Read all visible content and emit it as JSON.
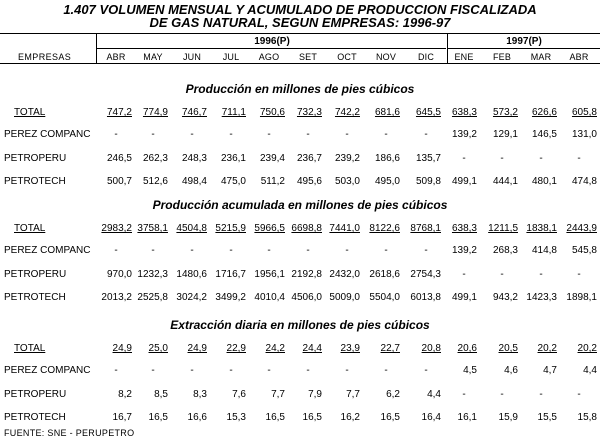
{
  "title_line1": "1.407  VOLUMEN MENSUAL Y ACUMULADO DE PRODUCCION FISCALIZADA",
  "title_line2": "DE GAS NATURAL, SEGUN EMPRESAS: 1996-97",
  "header": {
    "empresas": "EMPRESAS",
    "year_1996": "1996(P)",
    "year_1997": "1997(P)",
    "months": [
      "ABR",
      "MAY",
      "JUN",
      "JUL",
      "AGO",
      "SET",
      "OCT",
      "NOV",
      "DIC",
      "ENE",
      "FEB",
      "MAR",
      "ABR"
    ]
  },
  "sections": [
    {
      "title": "Producción en millones de pies cúbicos",
      "rows": [
        {
          "label": "TOTAL",
          "values": [
            "747,2",
            "774,9",
            "746,7",
            "711,1",
            "750,6",
            "732,3",
            "742,2",
            "681,6",
            "645,5",
            "638,3",
            "573,2",
            "626,6",
            "605,8"
          ]
        },
        {
          "label": "PEREZ COMPANC",
          "values": [
            "-",
            "-",
            "-",
            "-",
            "-",
            "-",
            "-",
            "-",
            "-",
            "139,2",
            "129,1",
            "146,5",
            "131,0"
          ]
        },
        {
          "label": "PETROPERU",
          "values": [
            "246,5",
            "262,3",
            "248,3",
            "236,1",
            "239,4",
            "236,7",
            "239,2",
            "186,6",
            "135,7",
            "-",
            "-",
            "-",
            "-"
          ]
        },
        {
          "label": "PETROTECH",
          "values": [
            "500,7",
            "512,6",
            "498,4",
            "475,0",
            "511,2",
            "495,6",
            "503,0",
            "495,0",
            "509,8",
            "499,1",
            "444,1",
            "480,1",
            "474,8"
          ]
        }
      ]
    },
    {
      "title": "Producción acumulada en millones de pies cúbicos",
      "rows": [
        {
          "label": "TOTAL",
          "values": [
            "2983,2",
            "3758,1",
            "4504,8",
            "5215,9",
            "5966,5",
            "6698,8",
            "7441,0",
            "8122,6",
            "8768,1",
            "638,3",
            "1211,5",
            "1838,1",
            "2443,9"
          ]
        },
        {
          "label": "PEREZ COMPANC",
          "values": [
            "-",
            "-",
            "-",
            "-",
            "-",
            "-",
            "-",
            "-",
            "-",
            "139,2",
            "268,3",
            "414,8",
            "545,8"
          ]
        },
        {
          "label": "PETROPERU",
          "values": [
            "970,0",
            "1232,3",
            "1480,6",
            "1716,7",
            "1956,1",
            "2192,8",
            "2432,0",
            "2618,6",
            "2754,3",
            "-",
            "-",
            "-",
            "-"
          ]
        },
        {
          "label": "PETROTECH",
          "values": [
            "2013,2",
            "2525,8",
            "3024,2",
            "3499,2",
            "4010,4",
            "4506,0",
            "5009,0",
            "5504,0",
            "6013,8",
            "499,1",
            "943,2",
            "1423,3",
            "1898,1"
          ]
        }
      ]
    },
    {
      "title": "Extracción diaria en millones de pies cúbicos",
      "rows": [
        {
          "label": "TOTAL",
          "values": [
            "24,9",
            "25,0",
            "24,9",
            "22,9",
            "24,2",
            "24,4",
            "23,9",
            "22,7",
            "20,8",
            "20,6",
            "20,5",
            "20,2",
            "20,2"
          ]
        },
        {
          "label": "PEREZ COMPANC",
          "values": [
            "-",
            "-",
            "-",
            "-",
            "-",
            "-",
            "-",
            "-",
            "-",
            "4,5",
            "4,6",
            "4,7",
            "4,4"
          ]
        },
        {
          "label": "PETROPERU",
          "values": [
            "8,2",
            "8,5",
            "8,3",
            "7,6",
            "7,7",
            "7,9",
            "7,7",
            "6,2",
            "4,4",
            "-",
            "-",
            "-",
            "-"
          ]
        },
        {
          "label": "PETROTECH",
          "values": [
            "16,7",
            "16,5",
            "16,6",
            "15,3",
            "16,5",
            "16,5",
            "16,2",
            "16,5",
            "16,4",
            "16,1",
            "15,9",
            "15,5",
            "15,8"
          ]
        }
      ]
    }
  ],
  "source": "FUENTE: SNE - PERUPETRO"
}
